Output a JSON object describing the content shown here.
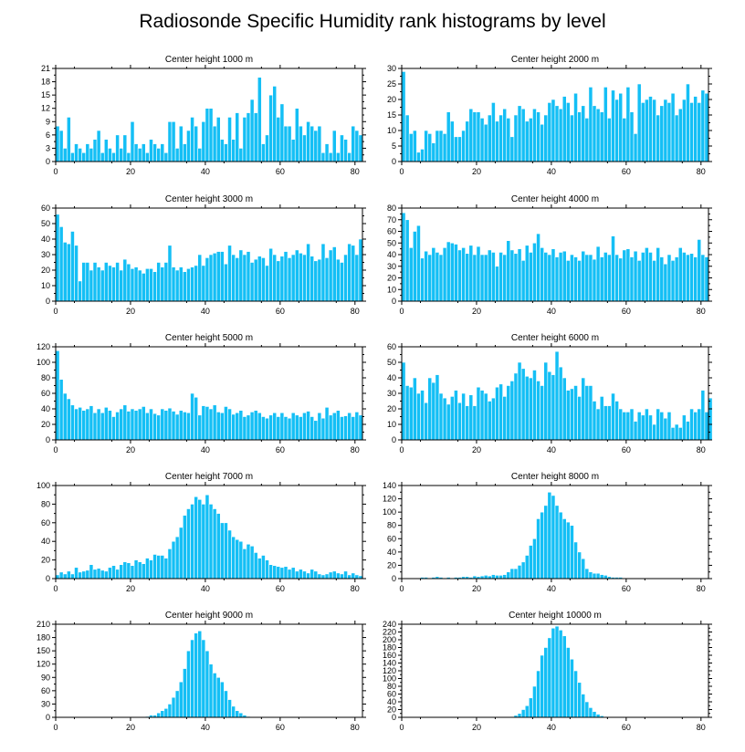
{
  "title": "Radiosonde Specific Humidity rank histograms by level",
  "colors": {
    "bar": "#14bff5"
  },
  "chart_data": [
    {
      "type": "bar",
      "title": "Center height 1000 m",
      "xlim": [
        0,
        82
      ],
      "ylim": [
        0,
        21
      ],
      "xticks": [
        0,
        20,
        40,
        60,
        80
      ],
      "yticks": [
        0,
        3,
        6,
        9,
        12,
        15,
        18,
        21
      ],
      "values": [
        8,
        7,
        3,
        10,
        2,
        4,
        3,
        2,
        4,
        3,
        5,
        7,
        2,
        5,
        3,
        2,
        6,
        3,
        6,
        2,
        9,
        4,
        3,
        4,
        2,
        5,
        4,
        3,
        4,
        2,
        9,
        9,
        3,
        8,
        4,
        7,
        10,
        8,
        3,
        9,
        12,
        12,
        8,
        10,
        5,
        4,
        10,
        5,
        11,
        3,
        10,
        11,
        14,
        11,
        19,
        4,
        6,
        15,
        17,
        10,
        13,
        8,
        8,
        5,
        12,
        8,
        6,
        9,
        8,
        7,
        8,
        2,
        4,
        2,
        7,
        2,
        6,
        5,
        2,
        8,
        7,
        6
      ]
    },
    {
      "type": "bar",
      "title": "Center height 2000 m",
      "xlim": [
        0,
        82
      ],
      "ylim": [
        0,
        30
      ],
      "xticks": [
        0,
        20,
        40,
        60,
        80
      ],
      "yticks": [
        0,
        5,
        10,
        15,
        20,
        25,
        30
      ],
      "values": [
        29,
        15,
        9,
        10,
        3,
        4,
        10,
        9,
        6,
        10,
        10,
        9,
        16,
        13,
        8,
        8,
        10,
        13,
        17,
        16,
        16,
        14,
        12,
        15,
        19,
        13,
        15,
        17,
        14,
        8,
        15,
        18,
        17,
        13,
        14,
        17,
        16,
        12,
        15,
        19,
        20,
        18,
        17,
        21,
        19,
        15,
        22,
        16,
        18,
        14,
        24,
        18,
        17,
        16,
        24,
        14,
        23,
        20,
        22,
        14,
        24,
        16,
        9,
        25,
        19,
        20,
        21,
        20,
        15,
        18,
        20,
        19,
        22,
        15,
        17,
        20,
        25,
        19,
        21,
        19,
        23,
        22
      ]
    },
    {
      "type": "bar",
      "title": "Center height 3000 m",
      "xlim": [
        0,
        82
      ],
      "ylim": [
        0,
        60
      ],
      "xticks": [
        0,
        20,
        40,
        60,
        80
      ],
      "yticks": [
        0,
        10,
        20,
        30,
        40,
        50,
        60
      ],
      "values": [
        56,
        48,
        38,
        37,
        45,
        36,
        13,
        25,
        25,
        20,
        25,
        22,
        20,
        25,
        23,
        22,
        25,
        20,
        27,
        24,
        21,
        22,
        20,
        18,
        21,
        21,
        19,
        25,
        22,
        25,
        36,
        22,
        20,
        22,
        19,
        21,
        22,
        23,
        30,
        23,
        28,
        30,
        31,
        32,
        32,
        24,
        36,
        30,
        28,
        33,
        30,
        32,
        25,
        27,
        29,
        28,
        23,
        34,
        30,
        26,
        29,
        32,
        28,
        30,
        33,
        31,
        30,
        37,
        29,
        26,
        27,
        37,
        28,
        33,
        35,
        27,
        25,
        30,
        37,
        36,
        30,
        40
      ]
    },
    {
      "type": "bar",
      "title": "Center height 4000 m",
      "xlim": [
        0,
        82
      ],
      "ylim": [
        0,
        80
      ],
      "xticks": [
        0,
        20,
        40,
        60,
        80
      ],
      "yticks": [
        0,
        10,
        20,
        30,
        40,
        50,
        60,
        70,
        80
      ],
      "values": [
        76,
        70,
        46,
        60,
        65,
        37,
        43,
        40,
        46,
        42,
        40,
        46,
        51,
        50,
        49,
        44,
        46,
        41,
        48,
        40,
        47,
        40,
        40,
        44,
        42,
        30,
        42,
        40,
        52,
        44,
        41,
        45,
        35,
        48,
        42,
        50,
        58,
        46,
        42,
        40,
        45,
        38,
        42,
        43,
        35,
        40,
        38,
        35,
        43,
        40,
        40,
        36,
        47,
        38,
        42,
        40,
        56,
        40,
        37,
        44,
        45,
        38,
        43,
        35,
        42,
        46,
        42,
        35,
        46,
        38,
        32,
        40,
        35,
        38,
        46,
        42,
        40,
        41,
        38,
        53,
        40,
        38
      ]
    },
    {
      "type": "bar",
      "title": "Center height 5000 m",
      "xlim": [
        0,
        82
      ],
      "ylim": [
        0,
        120
      ],
      "xticks": [
        0,
        20,
        40,
        60,
        80
      ],
      "yticks": [
        0,
        20,
        40,
        60,
        80,
        100,
        120
      ],
      "values": [
        115,
        78,
        60,
        53,
        45,
        40,
        42,
        38,
        40,
        44,
        35,
        40,
        35,
        42,
        38,
        30,
        36,
        40,
        45,
        37,
        40,
        38,
        40,
        43,
        35,
        40,
        34,
        32,
        40,
        38,
        41,
        37,
        33,
        38,
        36,
        35,
        60,
        55,
        32,
        44,
        43,
        40,
        45,
        36,
        35,
        43,
        40,
        33,
        35,
        38,
        30,
        32,
        36,
        38,
        35,
        30,
        28,
        32,
        35,
        30,
        35,
        30,
        28,
        35,
        32,
        30,
        35,
        37,
        30,
        25,
        35,
        28,
        42,
        32,
        35,
        38,
        30,
        31,
        35,
        30,
        36,
        32
      ]
    },
    {
      "type": "bar",
      "title": "Center height 6000 m",
      "xlim": [
        0,
        82
      ],
      "ylim": [
        0,
        60
      ],
      "xticks": [
        0,
        20,
        40,
        60,
        80
      ],
      "yticks": [
        0,
        10,
        20,
        30,
        40,
        50,
        60
      ],
      "values": [
        50,
        35,
        34,
        40,
        30,
        32,
        24,
        40,
        37,
        42,
        30,
        27,
        23,
        28,
        32,
        24,
        30,
        22,
        29,
        22,
        34,
        32,
        30,
        25,
        27,
        34,
        36,
        28,
        35,
        38,
        43,
        50,
        46,
        41,
        40,
        45,
        38,
        35,
        50,
        44,
        42,
        57,
        47,
        40,
        32,
        33,
        35,
        28,
        40,
        35,
        35,
        25,
        20,
        28,
        22,
        22,
        30,
        25,
        20,
        18,
        18,
        20,
        12,
        18,
        16,
        20,
        16,
        10,
        20,
        18,
        14,
        18,
        8,
        10,
        8,
        16,
        12,
        20,
        18,
        20,
        32,
        18,
        27
      ]
    },
    {
      "type": "bar",
      "title": "Center height 7000 m",
      "xlim": [
        0,
        82
      ],
      "ylim": [
        0,
        100
      ],
      "xticks": [
        0,
        20,
        40,
        60,
        80
      ],
      "yticks": [
        0,
        20,
        40,
        60,
        80,
        100
      ],
      "values": [
        4,
        7,
        5,
        8,
        5,
        12,
        7,
        8,
        9,
        15,
        10,
        11,
        9,
        8,
        12,
        14,
        10,
        15,
        18,
        17,
        14,
        20,
        18,
        16,
        22,
        20,
        26,
        25,
        25,
        22,
        32,
        40,
        45,
        55,
        68,
        75,
        80,
        88,
        85,
        80,
        90,
        80,
        75,
        70,
        60,
        60,
        52,
        45,
        42,
        40,
        32,
        37,
        35,
        28,
        22,
        25,
        20,
        15,
        14,
        13,
        12,
        13,
        10,
        12,
        8,
        10,
        8,
        6,
        10,
        8,
        5,
        4,
        5,
        7,
        8,
        6,
        5,
        8,
        4,
        6,
        4,
        3
      ]
    },
    {
      "type": "bar",
      "title": "Center height 8000 m",
      "xlim": [
        0,
        82
      ],
      "ylim": [
        0,
        140
      ],
      "xticks": [
        0,
        20,
        40,
        60,
        80
      ],
      "yticks": [
        0,
        20,
        40,
        60,
        80,
        100,
        120,
        140
      ],
      "values": [
        0,
        0,
        0,
        1,
        1,
        2,
        2,
        1,
        2,
        3,
        2,
        1,
        2,
        1,
        2,
        2,
        3,
        3,
        2,
        4,
        3,
        4,
        5,
        4,
        6,
        5,
        5,
        6,
        10,
        15,
        15,
        20,
        25,
        35,
        50,
        60,
        90,
        100,
        110,
        130,
        125,
        110,
        100,
        90,
        85,
        80,
        55,
        40,
        30,
        15,
        10,
        8,
        8,
        6,
        5,
        3,
        2,
        2,
        2,
        1,
        1,
        1,
        1,
        1,
        1,
        0,
        1,
        0,
        1,
        0,
        0,
        0,
        0,
        1,
        0,
        0,
        0,
        0,
        0,
        0,
        1,
        0
      ]
    },
    {
      "type": "bar",
      "title": "Center height 9000 m",
      "xlim": [
        0,
        82
      ],
      "ylim": [
        0,
        210
      ],
      "xticks": [
        0,
        20,
        40,
        60,
        80
      ],
      "yticks": [
        0,
        30,
        60,
        90,
        120,
        150,
        180,
        210
      ],
      "values": [
        0,
        0,
        0,
        0,
        0,
        0,
        0,
        0,
        0,
        0,
        0,
        0,
        0,
        0,
        0,
        0,
        0,
        0,
        0,
        0,
        0,
        0,
        0,
        0,
        2,
        5,
        5,
        10,
        15,
        20,
        30,
        45,
        60,
        80,
        110,
        150,
        175,
        190,
        195,
        175,
        150,
        120,
        100,
        90,
        80,
        60,
        40,
        25,
        15,
        10,
        5,
        2,
        1,
        0,
        0,
        0,
        0,
        0,
        0,
        0,
        0,
        0,
        0,
        0,
        0,
        0,
        0,
        0,
        0,
        0,
        0,
        0,
        0,
        0,
        0,
        0,
        0,
        0,
        0,
        0,
        0,
        0
      ]
    },
    {
      "type": "bar",
      "title": "Center height 10000 m",
      "xlim": [
        0,
        82
      ],
      "ylim": [
        0,
        240
      ],
      "xticks": [
        0,
        20,
        40,
        60,
        80
      ],
      "yticks": [
        0,
        20,
        40,
        60,
        80,
        100,
        120,
        140,
        160,
        180,
        200,
        220,
        240
      ],
      "values": [
        0,
        0,
        0,
        0,
        0,
        0,
        0,
        0,
        0,
        0,
        0,
        0,
        0,
        0,
        0,
        0,
        0,
        0,
        0,
        0,
        0,
        0,
        0,
        0,
        0,
        0,
        0,
        0,
        0,
        2,
        5,
        10,
        20,
        30,
        50,
        80,
        120,
        160,
        180,
        205,
        230,
        235,
        225,
        210,
        180,
        150,
        120,
        90,
        60,
        40,
        25,
        15,
        8,
        4,
        2,
        1,
        0,
        0,
        0,
        0,
        0,
        0,
        0,
        0,
        0,
        0,
        0,
        0,
        0,
        0,
        0,
        0,
        0,
        0,
        0,
        0,
        0,
        0,
        0,
        0,
        0,
        0
      ]
    }
  ]
}
